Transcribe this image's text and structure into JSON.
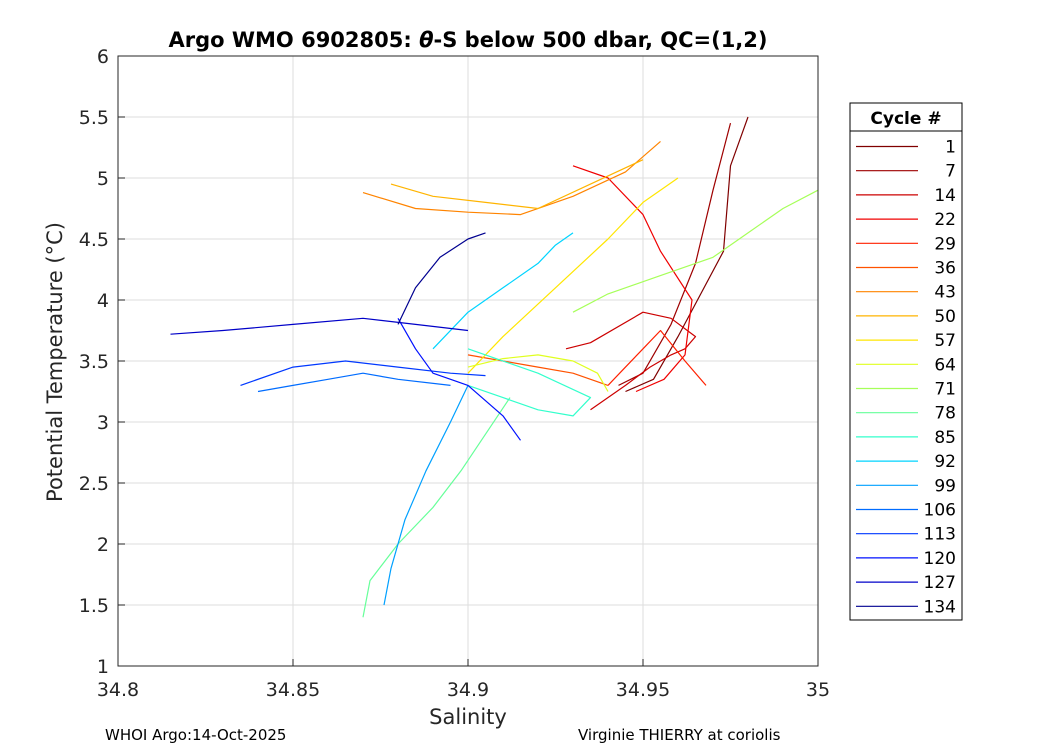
{
  "chart_data": {
    "type": "line",
    "title_parts": [
      "Argo WMO 6902805: ",
      "θ",
      "-S below 500 dbar,  QC=(1,2)"
    ],
    "xlabel": "Salinity",
    "ylabel": "Potential Temperature (°C)",
    "xlim": [
      34.8,
      35.0
    ],
    "ylim": [
      1,
      6
    ],
    "xticks": [
      34.8,
      34.85,
      34.9,
      34.95,
      35
    ],
    "xtick_labels": [
      "34.8",
      "34.85",
      "34.9",
      "34.95",
      "35"
    ],
    "yticks": [
      1,
      1.5,
      2,
      2.5,
      3,
      3.5,
      4,
      4.5,
      5,
      5.5,
      6
    ],
    "ytick_labels": [
      "1",
      "1.5",
      "2",
      "2.5",
      "3",
      "3.5",
      "4",
      "4.5",
      "5",
      "5.5",
      "6"
    ],
    "grid": true,
    "legend": {
      "title": "Cycle #",
      "placement": "outside-right",
      "entries": [
        "1",
        "7",
        "14",
        "22",
        "29",
        "36",
        "43",
        "50",
        "57",
        "64",
        "71",
        "78",
        "85",
        "92",
        "99",
        "106",
        "113",
        "120",
        "127",
        "134"
      ],
      "colors": [
        "#800000",
        "#9e0000",
        "#cc0000",
        "#f00000",
        "#ff2000",
        "#ff5200",
        "#ff8400",
        "#ffb400",
        "#ffe600",
        "#e0ff1f",
        "#a6ff59",
        "#66ff99",
        "#33ffcc",
        "#00d4ff",
        "#00a0ff",
        "#006cff",
        "#0038ff",
        "#0010ff",
        "#0000c8",
        "#000090"
      ]
    },
    "series": [
      {
        "name": "1",
        "s": [
          34.945,
          34.953,
          34.96,
          34.973,
          34.975,
          34.98
        ],
        "t": [
          3.25,
          3.35,
          3.7,
          4.4,
          5.1,
          5.5
        ]
      },
      {
        "name": "7",
        "s": [
          34.943,
          34.95,
          34.958,
          34.965,
          34.97,
          34.975
        ],
        "t": [
          3.3,
          3.4,
          3.8,
          4.3,
          4.9,
          5.45
        ]
      },
      {
        "name": "14",
        "s": [
          34.935,
          34.945,
          34.952,
          34.958,
          34.962,
          34.965,
          34.958,
          34.95,
          34.935,
          34.928
        ],
        "t": [
          3.1,
          3.3,
          3.45,
          3.55,
          3.6,
          3.7,
          3.85,
          3.9,
          3.65,
          3.6
        ]
      },
      {
        "name": "22",
        "s": [
          34.948,
          34.956,
          34.962,
          34.964,
          34.955,
          34.95,
          34.94,
          34.93
        ],
        "t": [
          3.25,
          3.35,
          3.55,
          4.0,
          4.4,
          4.7,
          5.0,
          5.1
        ]
      },
      {
        "name": "29",
        "s": [
          34.94,
          34.945,
          34.95,
          34.955,
          34.962,
          34.968
        ],
        "t": [
          3.3,
          3.45,
          3.6,
          3.75,
          3.5,
          3.3
        ]
      },
      {
        "name": "36",
        "s": [
          34.94,
          34.93,
          34.92,
          34.91,
          34.9
        ],
        "t": [
          3.3,
          3.4,
          3.45,
          3.5,
          3.55
        ]
      },
      {
        "name": "43",
        "s": [
          34.87,
          34.885,
          34.9,
          34.915,
          34.93,
          34.945,
          34.955
        ],
        "t": [
          4.88,
          4.75,
          4.72,
          4.7,
          4.85,
          5.05,
          5.3
        ]
      },
      {
        "name": "50",
        "s": [
          34.878,
          34.89,
          34.905,
          34.92,
          34.935,
          34.95
        ],
        "t": [
          4.95,
          4.85,
          4.8,
          4.75,
          4.95,
          5.15
        ]
      },
      {
        "name": "57",
        "s": [
          34.9,
          34.91,
          34.925,
          34.94,
          34.95,
          34.96
        ],
        "t": [
          3.4,
          3.7,
          4.1,
          4.5,
          4.8,
          5.0
        ]
      },
      {
        "name": "64",
        "s": [
          34.9,
          34.91,
          34.92,
          34.93,
          34.937,
          34.94
        ],
        "t": [
          3.45,
          3.52,
          3.55,
          3.5,
          3.4,
          3.25
        ]
      },
      {
        "name": "71",
        "s": [
          34.93,
          34.94,
          34.955,
          34.97,
          34.98,
          34.99,
          35.0
        ],
        "t": [
          3.9,
          4.05,
          4.2,
          4.35,
          4.55,
          4.75,
          4.9
        ]
      },
      {
        "name": "78",
        "s": [
          34.87,
          34.872,
          34.88,
          34.89,
          34.898,
          34.905,
          34.912
        ],
        "t": [
          1.4,
          1.7,
          2.0,
          2.3,
          2.6,
          2.9,
          3.2
        ]
      },
      {
        "name": "85",
        "s": [
          34.9,
          34.91,
          34.92,
          34.93,
          34.935,
          34.92,
          34.9
        ],
        "t": [
          3.3,
          3.2,
          3.1,
          3.05,
          3.2,
          3.4,
          3.6
        ]
      },
      {
        "name": "92",
        "s": [
          34.89,
          34.9,
          34.91,
          34.92,
          34.925,
          34.93
        ],
        "t": [
          3.6,
          3.9,
          4.1,
          4.3,
          4.45,
          4.55
        ]
      },
      {
        "name": "99",
        "s": [
          34.876,
          34.878,
          34.882,
          34.888,
          34.895,
          34.9
        ],
        "t": [
          1.5,
          1.8,
          2.2,
          2.6,
          3.0,
          3.3
        ]
      },
      {
        "name": "106",
        "s": [
          34.84,
          34.85,
          34.86,
          34.87,
          34.88,
          34.895
        ],
        "t": [
          3.25,
          3.3,
          3.35,
          3.4,
          3.35,
          3.3
        ]
      },
      {
        "name": "113",
        "s": [
          34.835,
          34.85,
          34.865,
          34.88,
          34.895,
          34.905
        ],
        "t": [
          3.3,
          3.45,
          3.5,
          3.45,
          3.4,
          3.38
        ]
      },
      {
        "name": "120",
        "s": [
          34.88,
          34.885,
          34.89,
          34.9,
          34.91,
          34.915
        ],
        "t": [
          3.85,
          3.6,
          3.4,
          3.3,
          3.05,
          2.85
        ]
      },
      {
        "name": "127",
        "s": [
          34.815,
          34.83,
          34.85,
          34.87,
          34.885,
          34.9
        ],
        "t": [
          3.72,
          3.75,
          3.8,
          3.85,
          3.8,
          3.75
        ]
      },
      {
        "name": "134",
        "s": [
          34.88,
          34.885,
          34.892,
          34.9,
          34.905
        ],
        "t": [
          3.8,
          4.1,
          4.35,
          4.5,
          4.55
        ]
      }
    ]
  },
  "footer": {
    "left": "WHOI Argo:14-Oct-2025",
    "right": "Virginie THIERRY at coriolis"
  }
}
